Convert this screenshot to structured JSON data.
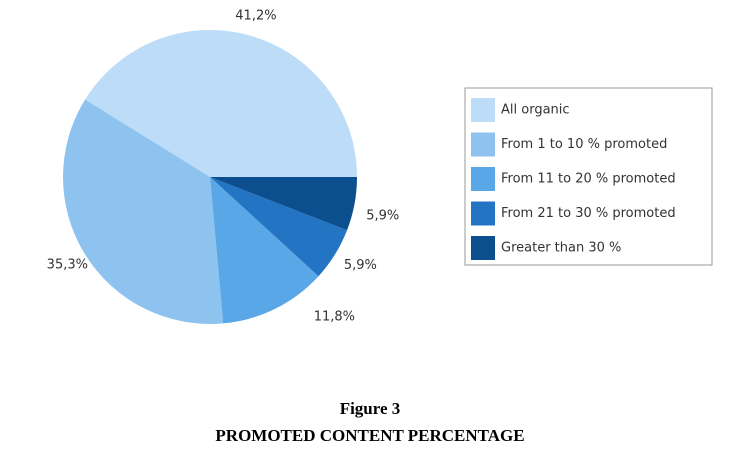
{
  "chart_data": {
    "type": "pie",
    "categories": [
      "All organic",
      "From 1 to 10 % promoted",
      "From 11 to 20 % promoted",
      "From 21 to 30 % promoted",
      "Greater than 30 %"
    ],
    "values": [
      41.2,
      35.3,
      11.8,
      5.9,
      5.9
    ],
    "value_labels": [
      "41,2%",
      "35,3%",
      "11,8%",
      "5,9%",
      "5,9%"
    ],
    "colors": [
      "#bddcf8",
      "#8ec3f0",
      "#5aa7e8",
      "#2474c4",
      "#0b4f8e"
    ],
    "legend": "right",
    "caption": "Figure 3",
    "title": "PROMOTED CONTENT PERCENTAGE"
  }
}
